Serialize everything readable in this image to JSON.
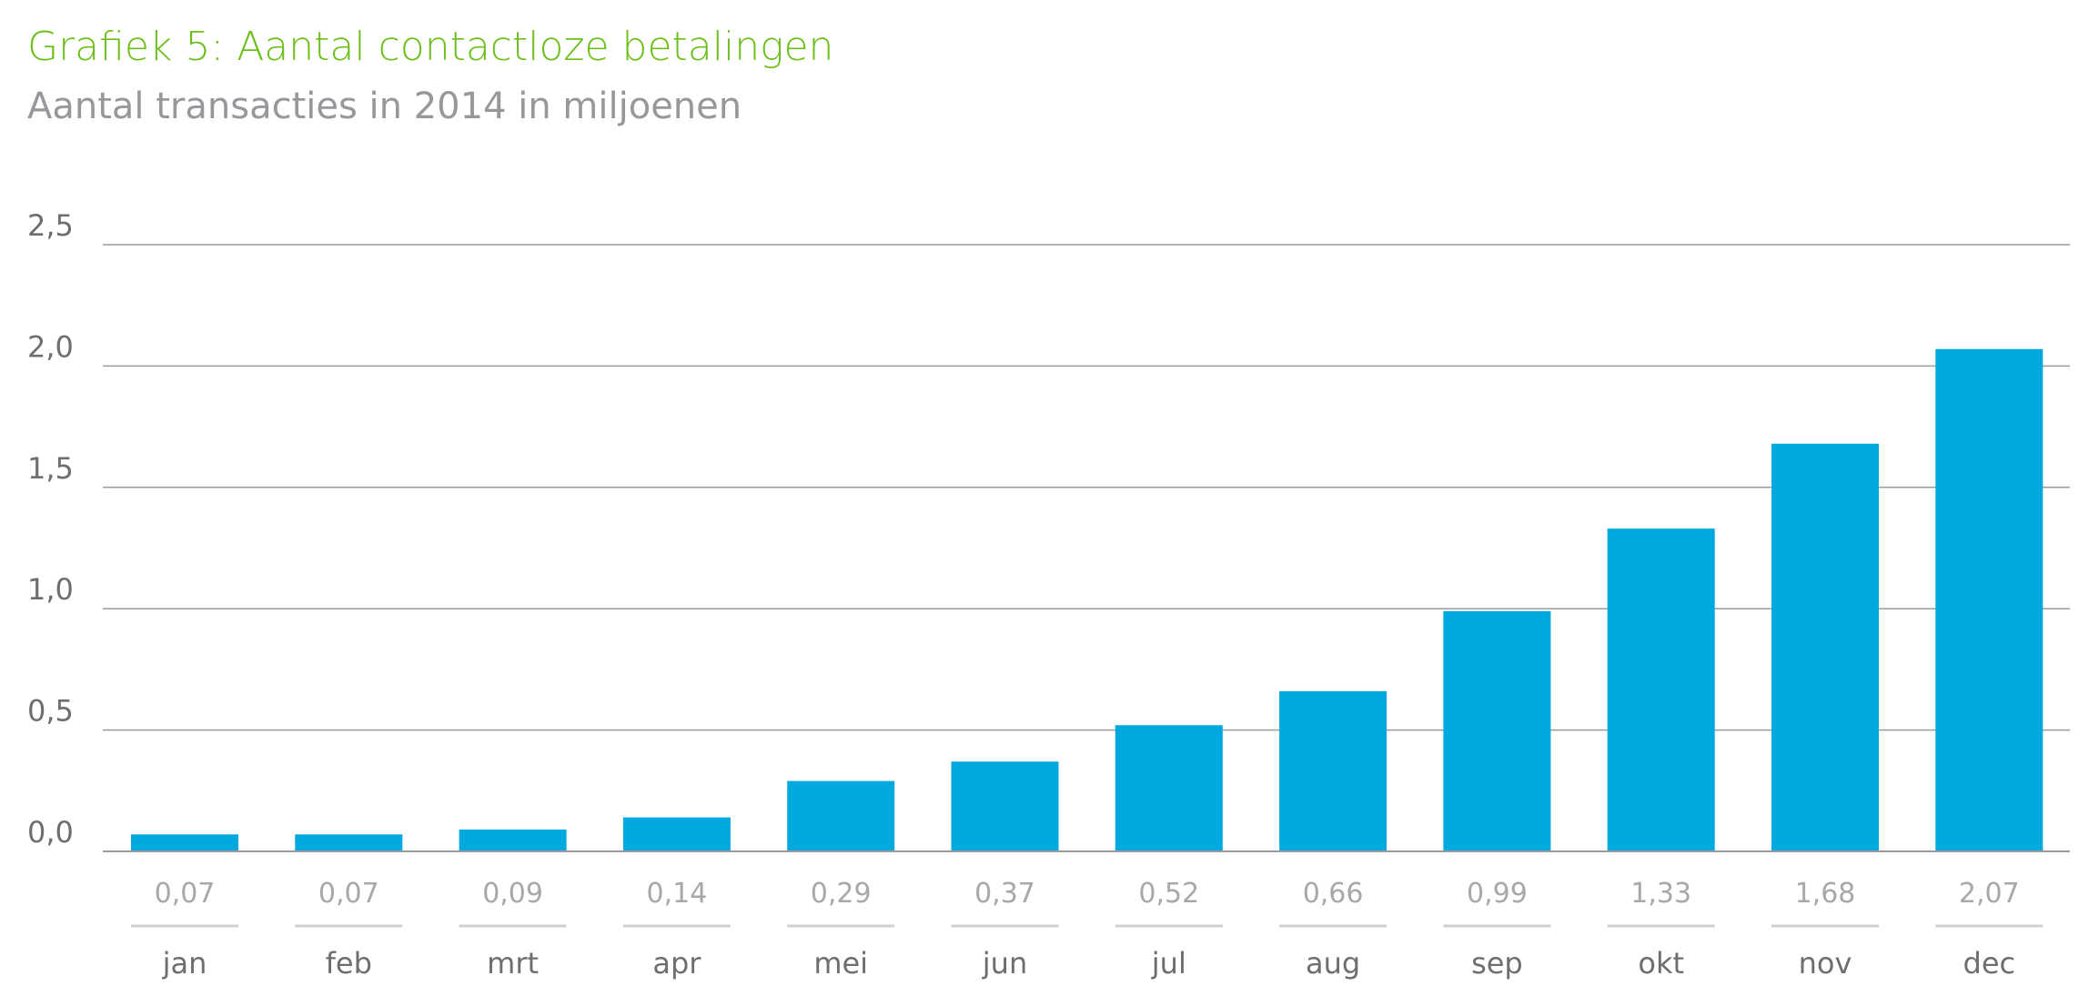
{
  "chart_data": {
    "type": "bar",
    "title": "Grafiek 5: Aantal contactloze betalingen",
    "subtitle": "Aantal transacties in 2014 in miljoenen",
    "xlabel": "",
    "ylabel": "",
    "categories": [
      "jan",
      "feb",
      "mrt",
      "apr",
      "mei",
      "jun",
      "jul",
      "aug",
      "sep",
      "okt",
      "nov",
      "dec"
    ],
    "values": [
      0.07,
      0.07,
      0.09,
      0.14,
      0.29,
      0.37,
      0.52,
      0.66,
      0.99,
      1.33,
      1.68,
      2.07
    ],
    "value_labels": [
      "0,07",
      "0,07",
      "0,09",
      "0,14",
      "0,29",
      "0,37",
      "0,52",
      "0,66",
      "0,99",
      "1,33",
      "1,68",
      "2,07"
    ],
    "ylim": [
      0,
      2.5
    ],
    "yticks": [
      0,
      0.5,
      1.0,
      1.5,
      2.0,
      2.5
    ],
    "ytick_labels": [
      "0,0",
      "0,5",
      "1,0",
      "1,5",
      "2,0",
      "2,5"
    ],
    "grid": true,
    "legend": "none",
    "colors": {
      "bar": "#00a8e0",
      "title": "#6cbf1a",
      "grid": "#9a9a9e"
    }
  }
}
